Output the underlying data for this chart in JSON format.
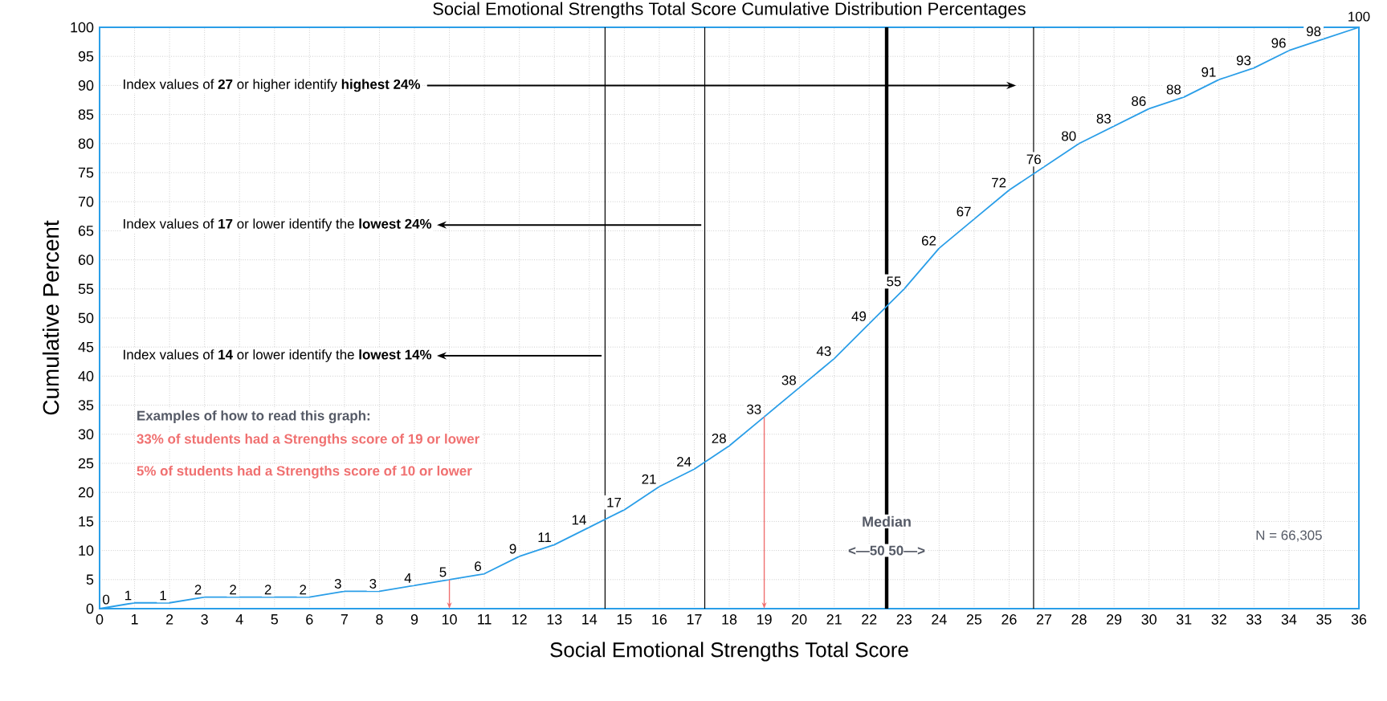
{
  "chart_data": {
    "type": "line",
    "title": "Social Emotional Strengths Total Score Cumulative Distribution Percentages",
    "xlabel": "Social Emotional Strengths Total Score",
    "ylabel": "Cumulative Percent",
    "x": [
      0,
      1,
      2,
      3,
      4,
      5,
      6,
      7,
      8,
      9,
      10,
      11,
      12,
      13,
      14,
      15,
      16,
      17,
      18,
      19,
      20,
      21,
      22,
      23,
      24,
      25,
      26,
      27,
      28,
      29,
      30,
      31,
      32,
      33,
      34,
      35,
      36
    ],
    "values": [
      0,
      1,
      1,
      2,
      2,
      2,
      2,
      3,
      3,
      4,
      5,
      6,
      9,
      11,
      14,
      17,
      21,
      24,
      28,
      33,
      38,
      43,
      49,
      55,
      62,
      67,
      72,
      76,
      80,
      83,
      86,
      88,
      91,
      93,
      96,
      98,
      100
    ],
    "color": "#2a9ee8",
    "data_labels": true,
    "grid": true,
    "marker": "none",
    "xlim": [
      0,
      36
    ],
    "ylim": [
      0,
      100
    ],
    "xticks": [
      0,
      1,
      2,
      3,
      4,
      5,
      6,
      7,
      8,
      9,
      10,
      11,
      12,
      13,
      14,
      15,
      16,
      17,
      18,
      19,
      20,
      21,
      22,
      23,
      24,
      25,
      26,
      27,
      28,
      29,
      30,
      31,
      32,
      33,
      34,
      35,
      36
    ],
    "yticks": [
      0,
      5,
      10,
      15,
      20,
      25,
      30,
      35,
      40,
      45,
      50,
      55,
      60,
      65,
      70,
      75,
      80,
      85,
      90,
      95,
      100
    ],
    "ref_lines": [
      {
        "axis": "x",
        "value": 14.45,
        "color": "#000000"
      },
      {
        "axis": "x",
        "value": 17.3,
        "color": "#000000"
      },
      {
        "axis": "x",
        "value": 22.5,
        "label": "Median",
        "color": "#000000"
      },
      {
        "axis": "x",
        "value": 26.7,
        "color": "#000000"
      }
    ],
    "annotations": [
      "Index values of **27** or higher identify **highest 24%**",
      "Index values of **17** or lower identify the **lowest 24%**",
      "Index values of **14** or lower identify the **lowest 14%**",
      "**Examples of how to read this graph:**",
      "**33% of students had a Strengths score of 19 or lower**",
      "**5% of students had a Strengths score of 10 or lower**",
      "**<—50    50—>**",
      "N = 66,305"
    ]
  }
}
